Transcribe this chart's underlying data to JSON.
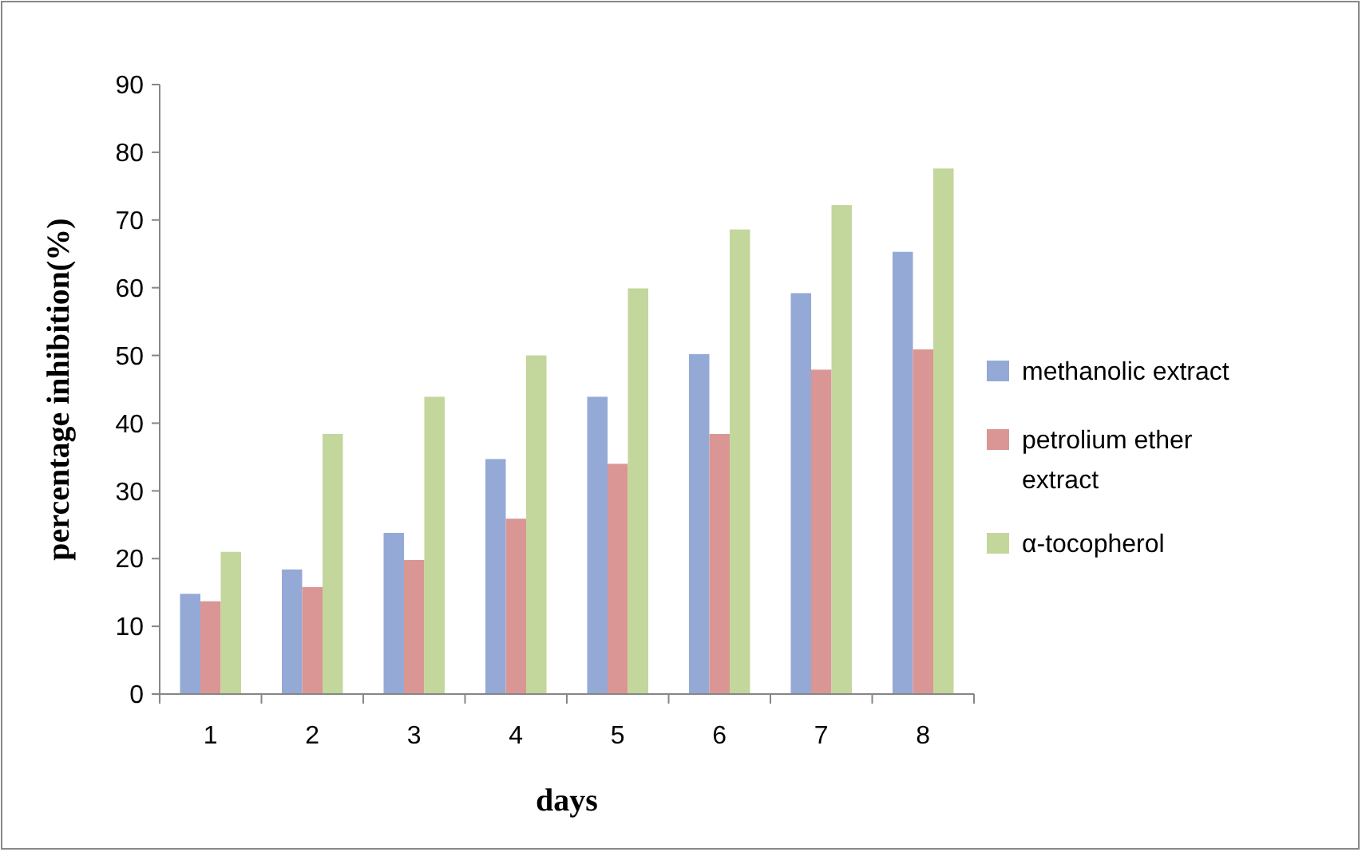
{
  "chart_data": {
    "type": "bar",
    "xlabel": "days",
    "ylabel": "percentage inhibition(%)",
    "categories": [
      "1",
      "2",
      "3",
      "4",
      "5",
      "6",
      "7",
      "8"
    ],
    "series": [
      {
        "name": "methanolic extract",
        "color": "#94a9d5",
        "values": [
          14.8,
          18.4,
          23.8,
          34.7,
          43.9,
          50.2,
          59.2,
          65.3
        ]
      },
      {
        "name": "petrolium ether extract",
        "color": "#d99694",
        "values": [
          13.7,
          15.8,
          19.8,
          25.9,
          34,
          38.4,
          47.9,
          50.9
        ]
      },
      {
        "name": "α-tocopherol",
        "color": "#c3d69b",
        "values": [
          21,
          38.4,
          43.9,
          50,
          59.9,
          68.6,
          72.2,
          77.6
        ]
      }
    ],
    "ylim": [
      0,
      90
    ],
    "yticks": [
      0,
      10,
      20,
      30,
      40,
      50,
      60,
      70,
      80,
      90
    ],
    "grid": false,
    "legend": "right"
  }
}
